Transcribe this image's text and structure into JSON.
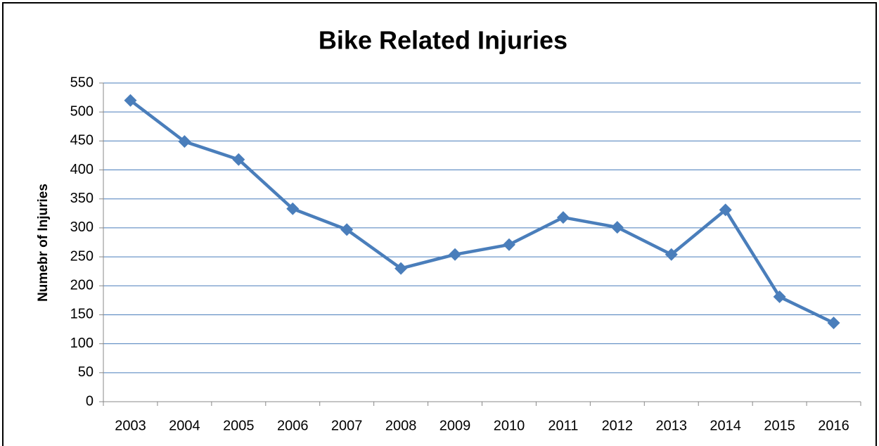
{
  "chart_data": {
    "type": "line",
    "title": "Bike Related Injuries",
    "y_label": "Numebr of Injuries",
    "categories": [
      "2003",
      "2004",
      "2005",
      "2006",
      "2007",
      "2008",
      "2009",
      "2010",
      "2011",
      "2012",
      "2013",
      "2014",
      "2015",
      "2016"
    ],
    "series": [
      {
        "name": "Injuries",
        "color": "#4a7ebb",
        "values": [
          520,
          449,
          418,
          333,
          297,
          230,
          254,
          271,
          318,
          301,
          254,
          331,
          181,
          136
        ]
      }
    ],
    "ylim": [
      0,
      550
    ],
    "yticks": [
      0,
      50,
      100,
      150,
      200,
      250,
      300,
      350,
      400,
      450,
      500,
      550
    ],
    "grid": true
  }
}
